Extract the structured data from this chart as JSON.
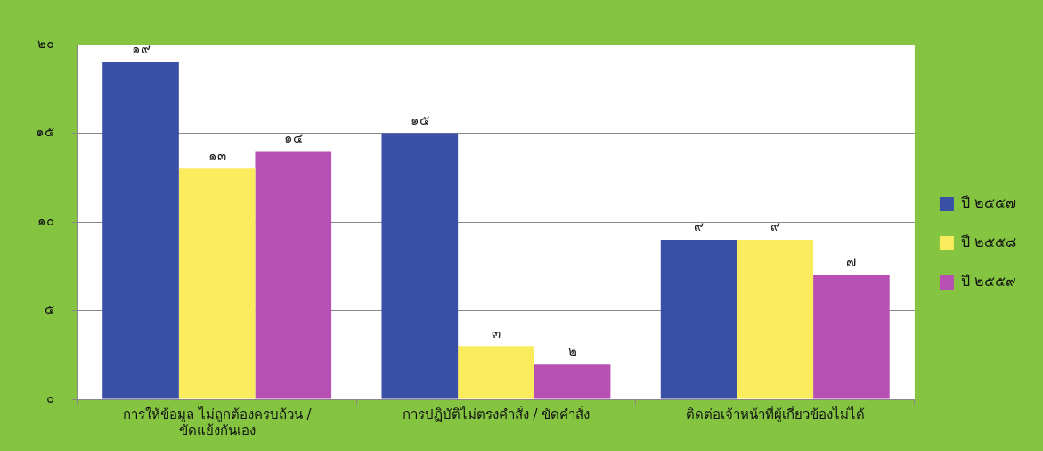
{
  "chart_data": {
    "type": "bar",
    "categories": [
      "การให้ข้อมูล ไม่ถูกต้องครบถ้วน / ขัดแย้งกันเอง",
      "การปฏิบัติไม่ตรงคำสั่ง / ขัดคำสั่ง",
      "ติดต่อเจ้าหน้าที่ผู้เกี่ยวข้องไม่ได้"
    ],
    "series": [
      {
        "name": "ปี ๒๕๕๗",
        "color": "#3a4fa6",
        "values": [
          19,
          15,
          9
        ],
        "value_labels": [
          "๑๙",
          "๑๕",
          "๙"
        ]
      },
      {
        "name": "ปี ๒๕๕๘",
        "color": "#fbec5d",
        "values": [
          13,
          3,
          9
        ],
        "value_labels": [
          "๑๓",
          "๓",
          "๙"
        ]
      },
      {
        "name": "ปี ๒๕๕๙",
        "color": "#b84fb3",
        "values": [
          14,
          2,
          7
        ],
        "value_labels": [
          "๑๔",
          "๒",
          "๗"
        ]
      }
    ],
    "ylim": [
      0,
      20
    ],
    "yticks": [
      {
        "value": 0,
        "label": "๐"
      },
      {
        "value": 5,
        "label": "๕"
      },
      {
        "value": 10,
        "label": "๑๐"
      },
      {
        "value": 15,
        "label": "๑๕"
      },
      {
        "value": 20,
        "label": "๒๐"
      }
    ],
    "grid": "y",
    "legend": "right"
  }
}
